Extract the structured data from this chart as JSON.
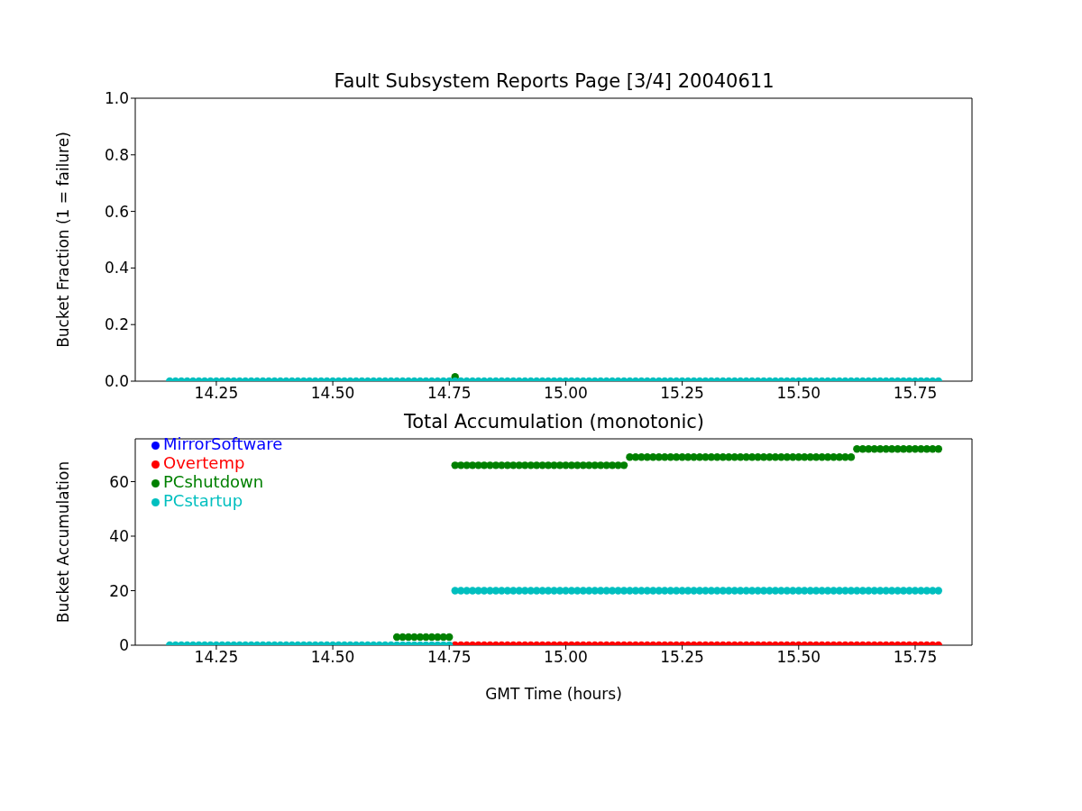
{
  "chart_data": [
    {
      "type": "scatter",
      "title": "Fault Subsystem Reports Page [3/4] 20040611",
      "ylabel": "Bucket Fraction (1 = failure)",
      "marker": "circle",
      "x": [
        14.15,
        14.1625,
        14.175,
        14.1875,
        14.2,
        14.2125,
        14.225,
        14.2375,
        14.25,
        14.2625,
        14.275,
        14.2875,
        14.3,
        14.3125,
        14.325,
        14.3375,
        14.35,
        14.3625,
        14.375,
        14.3875,
        14.4,
        14.4125,
        14.425,
        14.4375,
        14.45,
        14.4625,
        14.475,
        14.4875,
        14.5,
        14.5125,
        14.525,
        14.5375,
        14.55,
        14.5625,
        14.575,
        14.5875,
        14.6,
        14.6125,
        14.625,
        14.6375,
        14.65,
        14.6625,
        14.675,
        14.6875,
        14.7,
        14.7125,
        14.725,
        14.7375,
        14.75,
        14.7625,
        14.775,
        14.7875,
        14.8,
        14.8125,
        14.825,
        14.8375,
        14.85,
        14.8625,
        14.875,
        14.8875,
        14.9,
        14.9125,
        14.925,
        14.9375,
        14.95,
        14.9625,
        14.975,
        14.9875,
        15.0,
        15.0125,
        15.025,
        15.0375,
        15.05,
        15.0625,
        15.075,
        15.0875,
        15.1,
        15.1125,
        15.125,
        15.1375,
        15.15,
        15.1625,
        15.175,
        15.1875,
        15.2,
        15.2125,
        15.225,
        15.2375,
        15.25,
        15.2625,
        15.275,
        15.2875,
        15.3,
        15.3125,
        15.325,
        15.3375,
        15.35,
        15.3625,
        15.375,
        15.3875,
        15.4,
        15.4125,
        15.425,
        15.4375,
        15.45,
        15.4625,
        15.475,
        15.4875,
        15.5,
        15.5125,
        15.525,
        15.5375,
        15.55,
        15.5625,
        15.575,
        15.5875,
        15.6,
        15.6125,
        15.625,
        15.6375,
        15.65,
        15.6625,
        15.675,
        15.6875,
        15.7,
        15.7125,
        15.725,
        15.7375,
        15.75,
        15.7625,
        15.775,
        15.7875,
        15.8
      ],
      "series": [
        {
          "color": "#008000",
          "x": [
            14.7625
          ],
          "values": [
            0.015
          ]
        },
        {
          "color": "#00bfbf",
          "values": [
            0,
            0,
            0,
            0,
            0,
            0,
            0,
            0,
            0,
            0,
            0,
            0,
            0,
            0,
            0,
            0,
            0,
            0,
            0,
            0,
            0,
            0,
            0,
            0,
            0,
            0,
            0,
            0,
            0,
            0,
            0,
            0,
            0,
            0,
            0,
            0,
            0,
            0,
            0,
            0,
            0,
            0,
            0,
            0,
            0,
            0,
            0,
            0,
            0,
            0,
            0,
            0,
            0,
            0,
            0,
            0,
            0,
            0,
            0,
            0,
            0,
            0,
            0,
            0,
            0,
            0,
            0,
            0,
            0,
            0,
            0,
            0,
            0,
            0,
            0,
            0,
            0,
            0,
            0,
            0,
            0,
            0,
            0,
            0,
            0,
            0,
            0,
            0,
            0,
            0,
            0,
            0,
            0,
            0,
            0,
            0,
            0,
            0,
            0,
            0,
            0,
            0,
            0,
            0,
            0,
            0,
            0,
            0,
            0,
            0,
            0,
            0,
            0,
            0,
            0,
            0,
            0,
            0,
            0,
            0,
            0,
            0,
            0,
            0,
            0,
            0,
            0,
            0,
            0,
            0,
            0,
            0,
            0
          ]
        }
      ],
      "xlim": [
        14.076,
        15.872
      ],
      "xticks": [
        14.25,
        {
          "value": 14.5,
          "label": "14.50"
        },
        14.75,
        {
          "value": 15.0,
          "label": "15.00"
        },
        15.25,
        {
          "value": 15.5,
          "label": "15.50"
        },
        15.75
      ],
      "ylim": [
        0,
        1
      ],
      "yticks": [
        {
          "value": 0,
          "label": "0.0"
        },
        0.2,
        0.4,
        0.6,
        0.8,
        {
          "value": 1,
          "label": "1.0"
        }
      ]
    },
    {
      "type": "scatter",
      "title": "Total Accumulation (monotonic)",
      "xlabel": "GMT Time (hours)",
      "ylabel": "Bucket Accumulation",
      "marker": "circle",
      "legend": "top left",
      "x": [
        14.15,
        14.1625,
        14.175,
        14.1875,
        14.2,
        14.2125,
        14.225,
        14.2375,
        14.25,
        14.2625,
        14.275,
        14.2875,
        14.3,
        14.3125,
        14.325,
        14.3375,
        14.35,
        14.3625,
        14.375,
        14.3875,
        14.4,
        14.4125,
        14.425,
        14.4375,
        14.45,
        14.4625,
        14.475,
        14.4875,
        14.5,
        14.5125,
        14.525,
        14.5375,
        14.55,
        14.5625,
        14.575,
        14.5875,
        14.6,
        14.6125,
        14.625,
        14.6375,
        14.65,
        14.6625,
        14.675,
        14.6875,
        14.7,
        14.7125,
        14.725,
        14.7375,
        14.75,
        14.7625,
        14.775,
        14.7875,
        14.8,
        14.8125,
        14.825,
        14.8375,
        14.85,
        14.8625,
        14.875,
        14.8875,
        14.9,
        14.9125,
        14.925,
        14.9375,
        14.95,
        14.9625,
        14.975,
        14.9875,
        15.0,
        15.0125,
        15.025,
        15.0375,
        15.05,
        15.0625,
        15.075,
        15.0875,
        15.1,
        15.1125,
        15.125,
        15.1375,
        15.15,
        15.1625,
        15.175,
        15.1875,
        15.2,
        15.2125,
        15.225,
        15.2375,
        15.25,
        15.2625,
        15.275,
        15.2875,
        15.3,
        15.3125,
        15.325,
        15.3375,
        15.35,
        15.3625,
        15.375,
        15.3875,
        15.4,
        15.4125,
        15.425,
        15.4375,
        15.45,
        15.4625,
        15.475,
        15.4875,
        15.5,
        15.5125,
        15.525,
        15.5375,
        15.55,
        15.5625,
        15.575,
        15.5875,
        15.6,
        15.6125,
        15.625,
        15.6375,
        15.65,
        15.6625,
        15.675,
        15.6875,
        15.7,
        15.7125,
        15.725,
        15.7375,
        15.75,
        15.7625,
        15.775,
        15.7875,
        15.8
      ],
      "series": [
        {
          "name": "MirrorSoftware",
          "color": "#0000ff",
          "values": [
            null,
            null,
            null,
            null,
            null,
            null,
            null,
            null,
            null,
            null,
            null,
            null,
            null,
            null,
            null,
            null,
            null,
            null,
            null,
            null,
            null,
            null,
            null,
            null,
            null,
            null,
            null,
            null,
            null,
            null,
            null,
            null,
            null,
            null,
            null,
            null,
            null,
            null,
            null,
            null,
            null,
            null,
            null,
            null,
            null,
            null,
            null,
            null,
            null,
            null,
            null,
            null,
            null,
            null,
            null,
            null,
            null,
            null,
            null,
            null,
            null,
            null,
            null,
            null,
            null,
            null,
            null,
            null,
            null,
            null,
            null,
            null,
            null,
            null,
            null,
            null,
            null,
            null,
            null,
            null,
            null,
            null,
            null,
            null,
            null,
            null,
            null,
            null,
            null,
            null,
            null,
            null,
            null,
            null,
            null,
            null,
            null,
            null,
            null,
            null,
            null,
            null,
            null,
            null,
            null,
            null,
            null,
            null,
            null,
            null,
            null,
            null,
            null,
            null,
            null,
            null,
            null,
            null,
            null,
            null,
            null,
            null,
            null,
            null,
            null,
            null,
            null,
            null,
            null,
            null,
            null,
            null,
            null
          ]
        },
        {
          "name": "Overtemp",
          "color": "#ff0000",
          "values": [
            null,
            null,
            null,
            null,
            null,
            null,
            null,
            null,
            null,
            null,
            null,
            null,
            null,
            null,
            null,
            null,
            null,
            null,
            null,
            null,
            null,
            null,
            null,
            null,
            null,
            null,
            null,
            null,
            null,
            null,
            null,
            null,
            null,
            null,
            null,
            null,
            null,
            null,
            null,
            null,
            null,
            null,
            null,
            null,
            null,
            null,
            null,
            null,
            null,
            0,
            0,
            0,
            0,
            0,
            0,
            0,
            0,
            0,
            0,
            0,
            0,
            0,
            0,
            0,
            0,
            0,
            0,
            0,
            0,
            0,
            0,
            0,
            0,
            0,
            0,
            0,
            0,
            0,
            0,
            0,
            0,
            0,
            0,
            0,
            0,
            0,
            0,
            0,
            0,
            0,
            0,
            0,
            0,
            0,
            0,
            0,
            0,
            0,
            0,
            0,
            0,
            0,
            0,
            0,
            0,
            0,
            0,
            0,
            0,
            0,
            0,
            0,
            0,
            0,
            0,
            0,
            0,
            0,
            0,
            0,
            0,
            0,
            0,
            0,
            0,
            0,
            0,
            0,
            0,
            0,
            0,
            0,
            0
          ]
        },
        {
          "name": "PCshutdown",
          "color": "#008000",
          "values": [
            null,
            null,
            null,
            null,
            null,
            null,
            null,
            null,
            null,
            null,
            null,
            null,
            null,
            null,
            null,
            null,
            null,
            null,
            null,
            null,
            null,
            null,
            null,
            null,
            null,
            null,
            null,
            null,
            null,
            null,
            null,
            null,
            null,
            null,
            null,
            null,
            null,
            null,
            null,
            3,
            3,
            3,
            3,
            3,
            3,
            3,
            3,
            3,
            3,
            66,
            66,
            66,
            66,
            66,
            66,
            66,
            66,
            66,
            66,
            66,
            66,
            66,
            66,
            66,
            66,
            66,
            66,
            66,
            66,
            66,
            66,
            66,
            66,
            66,
            66,
            66,
            66,
            66,
            66,
            69,
            69,
            69,
            69,
            69,
            69,
            69,
            69,
            69,
            69,
            69,
            69,
            69,
            69,
            69,
            69,
            69,
            69,
            69,
            69,
            69,
            69,
            69,
            69,
            69,
            69,
            69,
            69,
            69,
            69,
            69,
            69,
            69,
            69,
            69,
            69,
            69,
            69,
            69,
            72,
            72,
            72,
            72,
            72,
            72,
            72,
            72,
            72,
            72,
            72,
            72,
            72,
            72,
            72
          ]
        },
        {
          "name": "PCstartup",
          "color": "#00bfbf",
          "values": [
            0,
            0,
            0,
            0,
            0,
            0,
            0,
            0,
            0,
            0,
            0,
            0,
            0,
            0,
            0,
            0,
            0,
            0,
            0,
            0,
            0,
            0,
            0,
            0,
            0,
            0,
            0,
            0,
            0,
            0,
            0,
            0,
            0,
            0,
            0,
            0,
            0,
            0,
            0,
            0,
            0,
            0,
            0,
            0,
            0,
            0,
            0,
            0,
            0,
            20,
            20,
            20,
            20,
            20,
            20,
            20,
            20,
            20,
            20,
            20,
            20,
            20,
            20,
            20,
            20,
            20,
            20,
            20,
            20,
            20,
            20,
            20,
            20,
            20,
            20,
            20,
            20,
            20,
            20,
            20,
            20,
            20,
            20,
            20,
            20,
            20,
            20,
            20,
            20,
            20,
            20,
            20,
            20,
            20,
            20,
            20,
            20,
            20,
            20,
            20,
            20,
            20,
            20,
            20,
            20,
            20,
            20,
            20,
            20,
            20,
            20,
            20,
            20,
            20,
            20,
            20,
            20,
            20,
            20,
            20,
            20,
            20,
            20,
            20,
            20,
            20,
            20,
            20,
            20,
            20,
            20,
            20,
            20
          ]
        }
      ],
      "xlim": [
        14.076,
        15.872
      ],
      "xticks": [
        14.25,
        {
          "value": 14.5,
          "label": "14.50"
        },
        14.75,
        {
          "value": 15.0,
          "label": "15.00"
        },
        15.25,
        {
          "value": 15.5,
          "label": "15.50"
        },
        15.75
      ],
      "ylim": [
        0,
        75.7
      ],
      "yticks": [
        0,
        20,
        40,
        60
      ]
    }
  ]
}
